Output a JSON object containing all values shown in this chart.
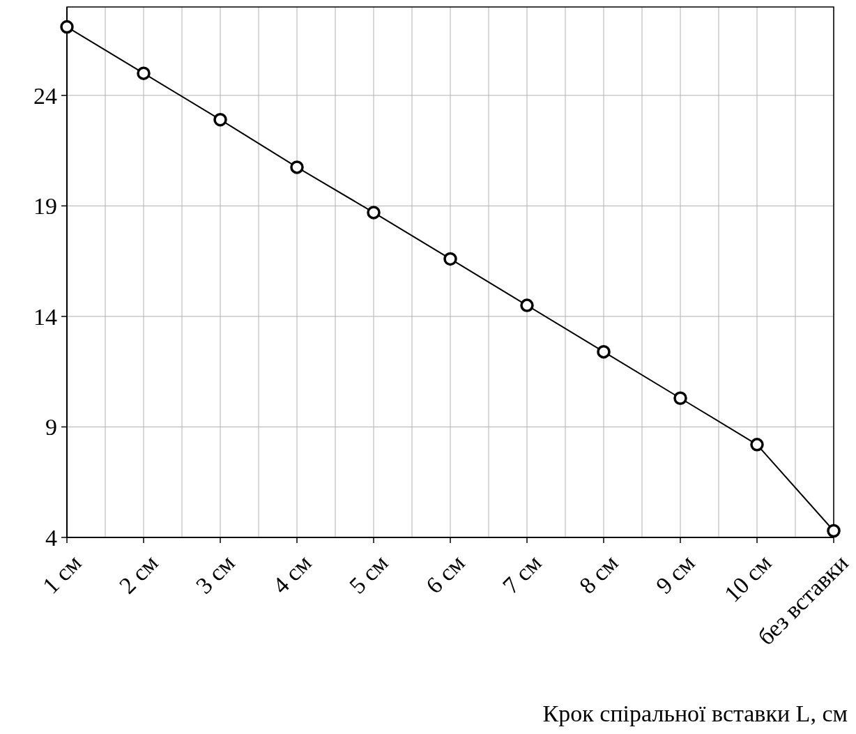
{
  "chart_data": {
    "type": "line",
    "xlabel": "Крок спіральної вставки L, см",
    "categories": [
      "1 см",
      "2 см",
      "3 см",
      "4 см",
      "5 см",
      "6 см",
      "7 см",
      "8 см",
      "9 см",
      "10 см",
      "без вставки"
    ],
    "series": [
      {
        "color": "#000000",
        "values": [
          27.1,
          25.0,
          22.9,
          20.75,
          18.7,
          16.6,
          14.5,
          12.4,
          10.3,
          8.2,
          4.3
        ]
      }
    ],
    "ylim": [
      4,
      28
    ],
    "yticks": [
      4,
      9,
      14,
      19,
      24
    ],
    "grid": true,
    "marker": "circle",
    "line_style": "solid"
  }
}
